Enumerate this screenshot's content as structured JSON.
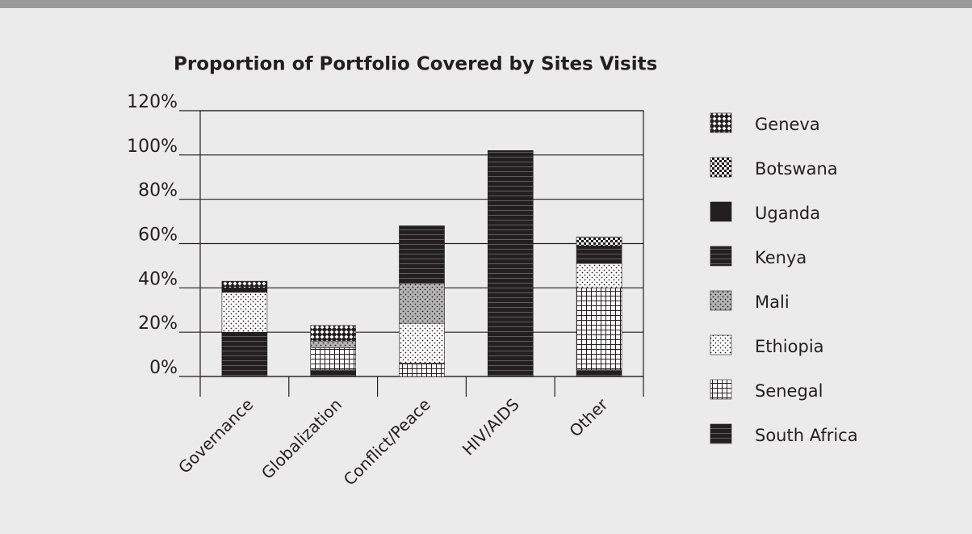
{
  "chart_data": {
    "type": "stacked_bar",
    "title": "Proportion of Portfolio Covered by Sites Visits",
    "categories": [
      "Governance",
      "Globalization",
      "Conflict/Peace",
      "HIV/AIDS",
      "Other"
    ],
    "series": [
      {
        "name": "South Africa",
        "color": "#231f20",
        "values": [
          20,
          3,
          0,
          0,
          3
        ]
      },
      {
        "name": "Senegal",
        "color": "#ffffff",
        "values": [
          0,
          10,
          6,
          0,
          37
        ]
      },
      {
        "name": "Ethiopia",
        "color": "#ffffff",
        "values": [
          18,
          0,
          18,
          0,
          11
        ]
      },
      {
        "name": "Mali",
        "color": "#b5b5b5",
        "values": [
          0,
          3,
          18,
          0,
          0
        ]
      },
      {
        "name": "Kenya",
        "color": "#231f20",
        "values": [
          0,
          0,
          26,
          102,
          8
        ]
      },
      {
        "name": "Uganda",
        "color": "#231f20",
        "values": [
          2,
          0,
          0,
          0,
          0
        ]
      },
      {
        "name": "Botswana",
        "color": "#231f20",
        "values": [
          0,
          0,
          0,
          0,
          4
        ]
      },
      {
        "name": "Geneva",
        "color": "#231f20",
        "values": [
          3,
          7,
          0,
          0,
          0
        ]
      }
    ],
    "ylim": [
      0,
      120
    ],
    "yticks": [
      {
        "value": 0,
        "label": "0%"
      },
      {
        "value": 20,
        "label": "20%"
      },
      {
        "value": 40,
        "label": "40%"
      },
      {
        "value": 60,
        "label": "60%"
      },
      {
        "value": 80,
        "label": "80%"
      },
      {
        "value": 100,
        "label": "100%"
      },
      {
        "value": 120,
        "label": "120%"
      }
    ],
    "grid": true,
    "legend": "right"
  }
}
